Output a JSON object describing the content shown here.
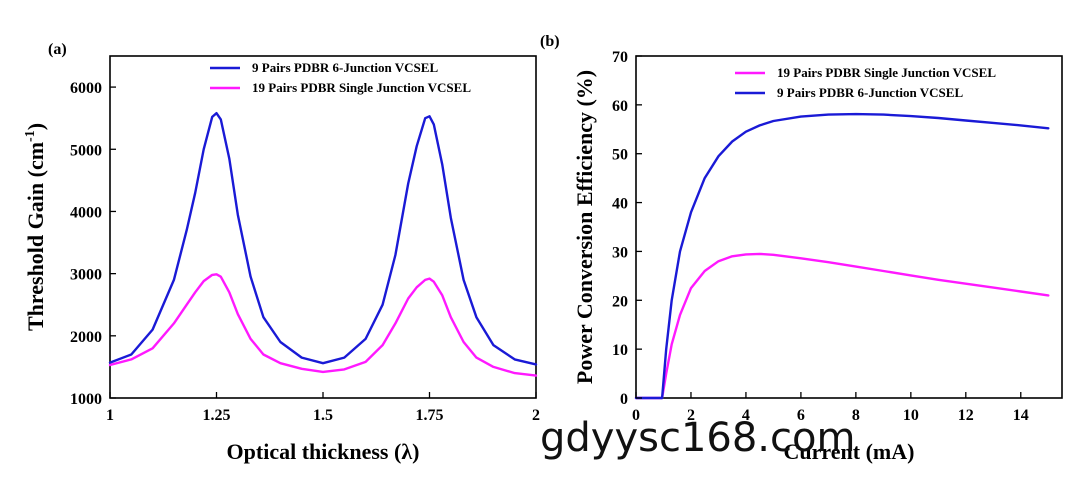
{
  "colors": {
    "blue": "#1a1ad6",
    "magenta": "#ff19ff"
  },
  "watermark": "gdyysc168.com",
  "chart_data": [
    {
      "panel": "(a)",
      "type": "line",
      "xlabel": "Optical thickness (λ)",
      "ylabel_main": "Threshold Gain (cm",
      "ylabel_sup": "-1",
      "ylabel_end": ")",
      "xlim": [
        1,
        2
      ],
      "ylim": [
        1000,
        6500
      ],
      "xticks": [
        1,
        1.25,
        1.5,
        1.75,
        2
      ],
      "xtick_labels": [
        "1",
        "1.25",
        "1.5",
        "1.75",
        "2"
      ],
      "yticks": [
        1000,
        2000,
        3000,
        4000,
        5000,
        6000
      ],
      "ytick_labels": [
        "1000",
        "2000",
        "3000",
        "4000",
        "5000",
        "6000"
      ],
      "legend_position": "top-right",
      "series": [
        {
          "name": "9   Pairs PDBR 6-Junction VCSEL",
          "color": "#1a1ad6",
          "x": [
            1.0,
            1.05,
            1.1,
            1.15,
            1.18,
            1.2,
            1.22,
            1.24,
            1.25,
            1.26,
            1.28,
            1.3,
            1.33,
            1.36,
            1.4,
            1.45,
            1.5,
            1.55,
            1.6,
            1.64,
            1.67,
            1.7,
            1.72,
            1.74,
            1.75,
            1.76,
            1.78,
            1.8,
            1.83,
            1.86,
            1.9,
            1.95,
            2.0
          ],
          "y": [
            1570,
            1700,
            2100,
            2900,
            3700,
            4300,
            5000,
            5520,
            5580,
            5480,
            4850,
            3950,
            2950,
            2300,
            1900,
            1650,
            1560,
            1650,
            1950,
            2500,
            3300,
            4450,
            5050,
            5500,
            5530,
            5400,
            4750,
            3900,
            2900,
            2300,
            1850,
            1620,
            1540
          ]
        },
        {
          "name": "19 Pairs PDBR Single Junction VCSEL",
          "color": "#ff19ff",
          "x": [
            1.0,
            1.05,
            1.1,
            1.15,
            1.18,
            1.2,
            1.22,
            1.24,
            1.25,
            1.26,
            1.28,
            1.3,
            1.33,
            1.36,
            1.4,
            1.45,
            1.5,
            1.55,
            1.6,
            1.64,
            1.67,
            1.7,
            1.72,
            1.74,
            1.75,
            1.76,
            1.78,
            1.8,
            1.83,
            1.86,
            1.9,
            1.95,
            2.0
          ],
          "y": [
            1530,
            1620,
            1800,
            2200,
            2500,
            2700,
            2880,
            2980,
            2990,
            2950,
            2700,
            2350,
            1950,
            1700,
            1560,
            1470,
            1420,
            1460,
            1580,
            1850,
            2200,
            2600,
            2780,
            2900,
            2920,
            2870,
            2650,
            2300,
            1900,
            1650,
            1500,
            1400,
            1360
          ]
        }
      ]
    },
    {
      "panel": "(b)",
      "type": "line",
      "xlabel": "Current (mA)",
      "ylabel": "Power Conversion Efficiency (%)",
      "xlim": [
        0,
        15.5
      ],
      "ylim": [
        0,
        70
      ],
      "xticks": [
        0,
        2,
        4,
        6,
        8,
        10,
        12,
        14
      ],
      "xtick_labels": [
        "0",
        "2",
        "4",
        "6",
        "8",
        "10",
        "12",
        "14"
      ],
      "yticks": [
        0,
        10,
        20,
        30,
        40,
        50,
        60,
        70
      ],
      "ytick_labels": [
        "0",
        "10",
        "20",
        "30",
        "40",
        "50",
        "60",
        "70"
      ],
      "legend_position": "top-right",
      "series": [
        {
          "name": "19 Pairs PDBR Single Junction VCSEL",
          "color": "#ff19ff",
          "x": [
            0,
            0.95,
            1.1,
            1.3,
            1.6,
            2.0,
            2.5,
            3.0,
            3.5,
            4.0,
            4.5,
            5.0,
            6.0,
            7.0,
            8.0,
            9.0,
            10.0,
            11.0,
            12.0,
            13.0,
            14.0,
            15.0
          ],
          "y": [
            0,
            0,
            5,
            11,
            17,
            22.5,
            26,
            28,
            29,
            29.4,
            29.5,
            29.3,
            28.6,
            27.8,
            26.9,
            26.0,
            25.1,
            24.2,
            23.4,
            22.6,
            21.8,
            21.0
          ]
        },
        {
          "name": "9   Pairs PDBR 6-Junction VCSEL",
          "color": "#1a1ad6",
          "x": [
            0,
            0.95,
            1.1,
            1.3,
            1.6,
            2.0,
            2.5,
            3.0,
            3.5,
            4.0,
            4.5,
            5.0,
            6.0,
            7.0,
            8.0,
            9.0,
            10.0,
            11.0,
            12.0,
            13.0,
            14.0,
            15.0
          ],
          "y": [
            0,
            0,
            10,
            20,
            30,
            38,
            45,
            49.5,
            52.5,
            54.5,
            55.8,
            56.7,
            57.6,
            58.0,
            58.1,
            58.0,
            57.7,
            57.3,
            56.8,
            56.3,
            55.8,
            55.2
          ]
        }
      ]
    }
  ]
}
